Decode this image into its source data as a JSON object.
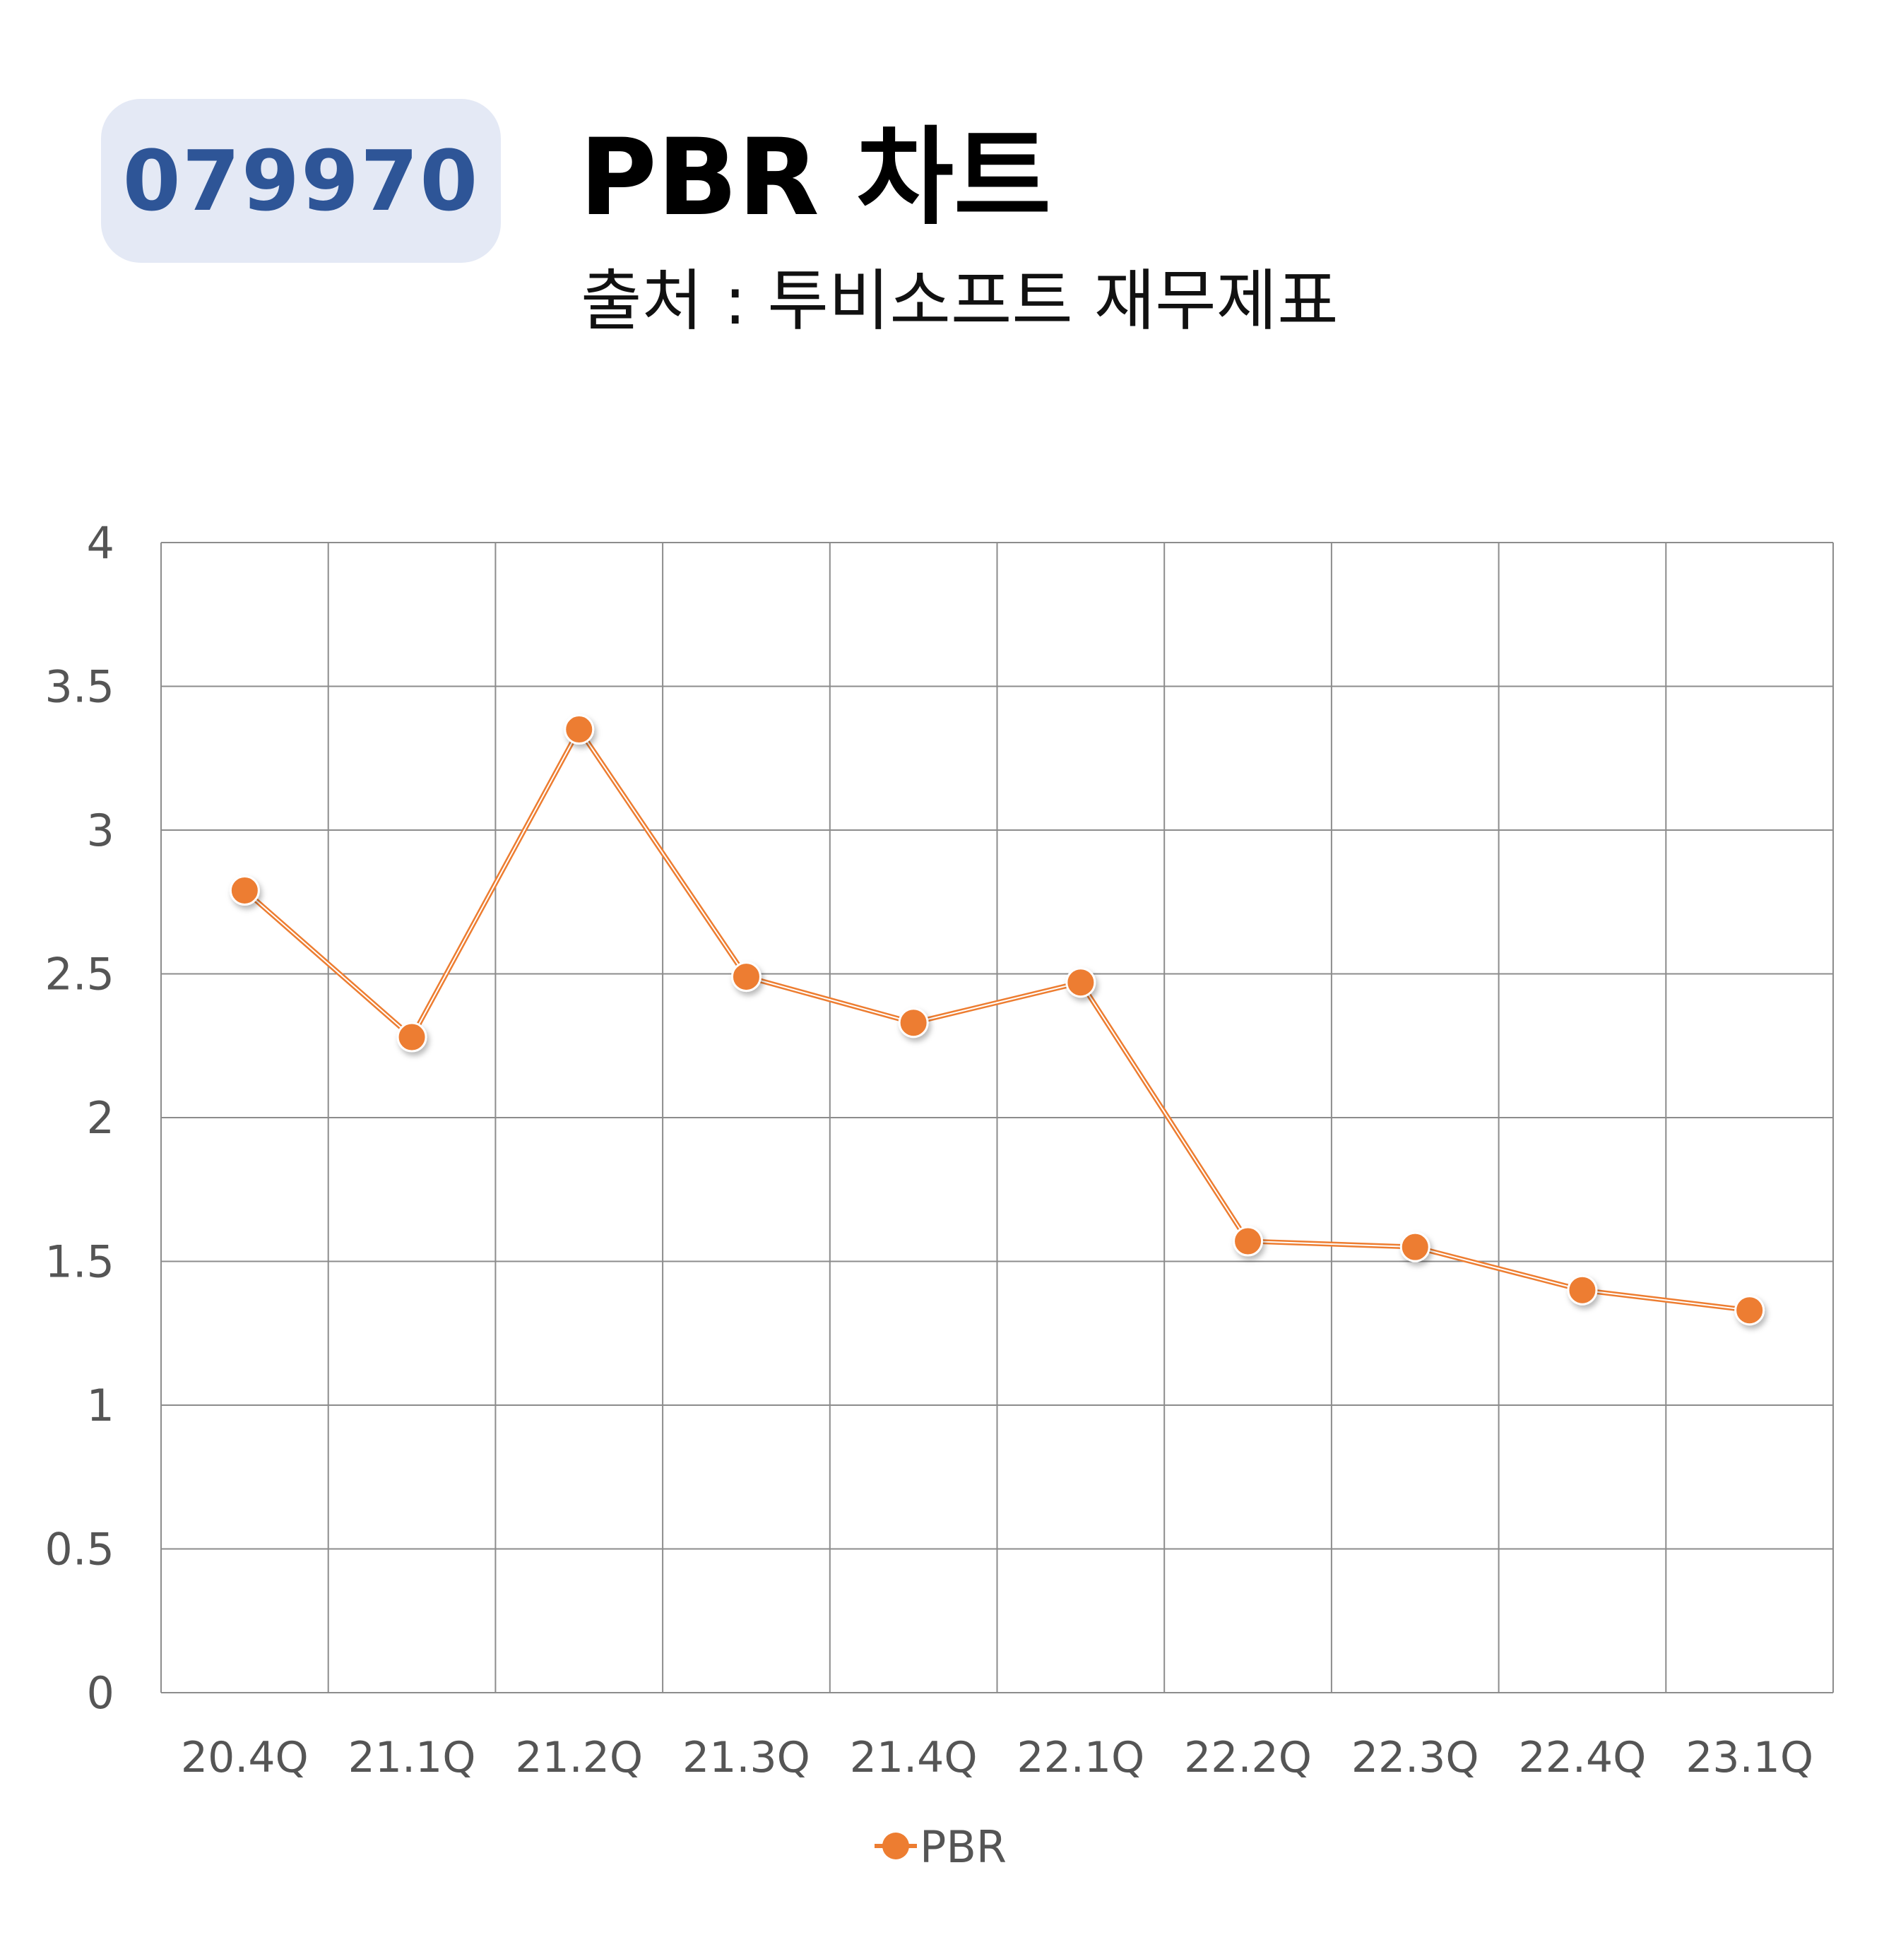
{
  "header": {
    "code": "079970",
    "title": "PBR 차트",
    "subtitle": "출처 : 투비소프트 재무제표"
  },
  "colors": {
    "badge_bg": "#e4e9f5",
    "badge_text": "#2e5597",
    "series": "#ed7d31",
    "grid": "#8c8c8c"
  },
  "chart_data": {
    "type": "line",
    "categories": [
      "20.4Q",
      "21.1Q",
      "21.2Q",
      "21.3Q",
      "21.4Q",
      "22.1Q",
      "22.2Q",
      "22.3Q",
      "22.4Q",
      "23.1Q"
    ],
    "series": [
      {
        "name": "PBR",
        "values": [
          2.79,
          2.28,
          3.35,
          2.49,
          2.33,
          2.47,
          1.57,
          1.55,
          1.4,
          1.33
        ]
      }
    ],
    "yticks": [
      "0",
      "0.5",
      "1",
      "1.5",
      "2",
      "2.5",
      "3",
      "3.5",
      "4"
    ],
    "ylim": [
      0,
      4
    ],
    "grid": true,
    "legend": "bottom-center",
    "marker": "circle"
  }
}
